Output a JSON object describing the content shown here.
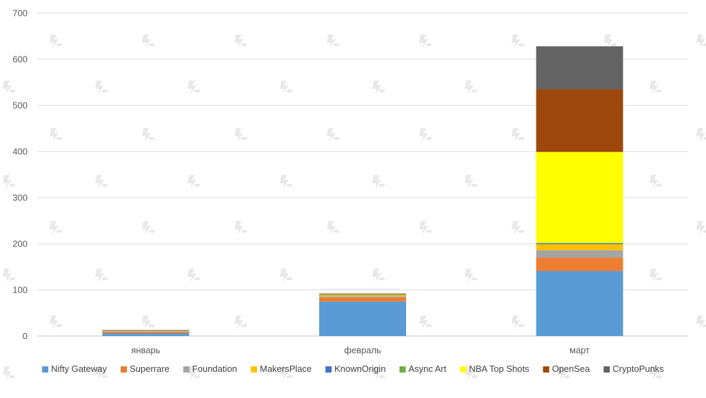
{
  "chart_data": {
    "type": "bar",
    "stacked": true,
    "categories": [
      "январь",
      "февраль",
      "март"
    ],
    "ylim": [
      0,
      700
    ],
    "yticks": [
      0,
      100,
      200,
      300,
      400,
      500,
      600,
      700
    ],
    "grid": true,
    "legend_position": "bottom",
    "series": [
      {
        "name": "Nifty Gateway",
        "color": "#5B9BD5",
        "values": [
          6,
          75,
          141
        ]
      },
      {
        "name": "Superrare",
        "color": "#ED7D31",
        "values": [
          3,
          9,
          29
        ]
      },
      {
        "name": "Foundation",
        "color": "#A5A5A5",
        "values": [
          1,
          2,
          16
        ]
      },
      {
        "name": "MakersPlace",
        "color": "#FFC000",
        "values": [
          1,
          3,
          13
        ]
      },
      {
        "name": "KnownOrigin",
        "color": "#4472C4",
        "values": [
          0.5,
          1,
          2
        ]
      },
      {
        "name": "Async Art",
        "color": "#70AD47",
        "values": [
          0.5,
          1,
          1
        ]
      },
      {
        "name": "NBA Top Shots",
        "color": "#FFFF00",
        "values": [
          0,
          0,
          197
        ]
      },
      {
        "name": "OpenSea",
        "color": "#9E480E",
        "values": [
          1,
          1,
          136
        ]
      },
      {
        "name": "CryptoPunks",
        "color": "#636363",
        "values": [
          0,
          0,
          93
        ]
      }
    ]
  }
}
